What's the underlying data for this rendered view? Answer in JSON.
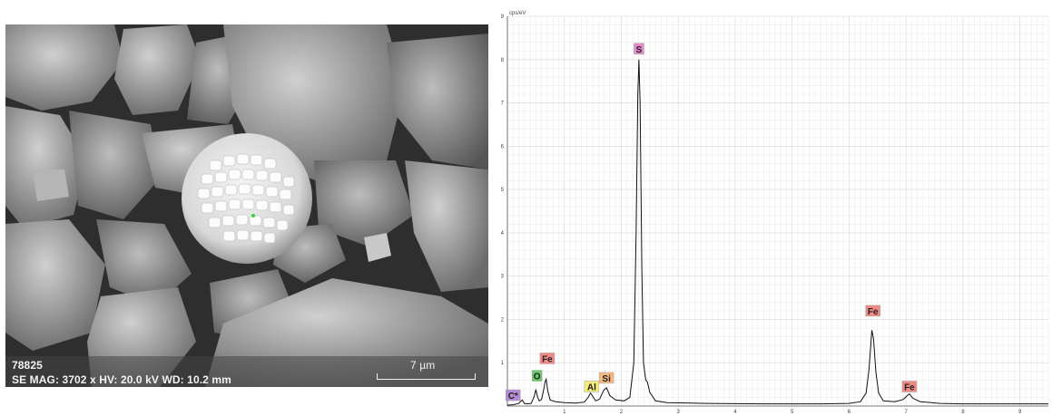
{
  "micrograph": {
    "sample_id": "78825",
    "parameters": "SE  MAG: 3702 x  HV: 20.0 kV  WD: 10.2 mm",
    "scale_bar_label": "7 µm"
  },
  "chart_data": {
    "type": "line",
    "title": "",
    "xlabel": "",
    "ylabel": "cps/eV",
    "xlim": [
      0,
      9.5
    ],
    "ylim": [
      0,
      9
    ],
    "xticks": [
      "1",
      "2",
      "3",
      "4",
      "5",
      "6",
      "7",
      "8",
      "9"
    ],
    "yticks": [
      "1",
      "2",
      "3",
      "4",
      "5",
      "6",
      "7",
      "8",
      "9"
    ],
    "grid": true,
    "series": [
      {
        "points": [
          [
            0.0,
            0.02
          ],
          [
            0.1,
            0.03
          ],
          [
            0.2,
            0.06
          ],
          [
            0.26,
            0.14
          ],
          [
            0.3,
            0.06
          ],
          [
            0.36,
            0.05
          ],
          [
            0.42,
            0.06
          ],
          [
            0.47,
            0.22
          ],
          [
            0.5,
            0.38
          ],
          [
            0.53,
            0.2
          ],
          [
            0.56,
            0.12
          ],
          [
            0.6,
            0.15
          ],
          [
            0.64,
            0.4
          ],
          [
            0.66,
            0.55
          ],
          [
            0.68,
            0.62
          ],
          [
            0.71,
            0.35
          ],
          [
            0.75,
            0.14
          ],
          [
            0.85,
            0.1
          ],
          [
            1.0,
            0.08
          ],
          [
            1.2,
            0.07
          ],
          [
            1.35,
            0.09
          ],
          [
            1.42,
            0.2
          ],
          [
            1.46,
            0.3
          ],
          [
            1.5,
            0.22
          ],
          [
            1.55,
            0.12
          ],
          [
            1.62,
            0.16
          ],
          [
            1.69,
            0.36
          ],
          [
            1.74,
            0.42
          ],
          [
            1.8,
            0.24
          ],
          [
            1.9,
            0.14
          ],
          [
            2.05,
            0.12
          ],
          [
            2.15,
            0.2
          ],
          [
            2.22,
            1.0
          ],
          [
            2.26,
            4.0
          ],
          [
            2.29,
            7.2
          ],
          [
            2.31,
            8.0
          ],
          [
            2.33,
            7.0
          ],
          [
            2.36,
            3.2
          ],
          [
            2.39,
            1.0
          ],
          [
            2.43,
            0.6
          ],
          [
            2.46,
            0.55
          ],
          [
            2.5,
            0.32
          ],
          [
            2.6,
            0.12
          ],
          [
            2.8,
            0.08
          ],
          [
            3.5,
            0.06
          ],
          [
            4.5,
            0.05
          ],
          [
            5.5,
            0.05
          ],
          [
            6.0,
            0.06
          ],
          [
            6.2,
            0.1
          ],
          [
            6.3,
            0.3
          ],
          [
            6.35,
            0.85
          ],
          [
            6.4,
            1.75
          ],
          [
            6.43,
            1.55
          ],
          [
            6.47,
            0.8
          ],
          [
            6.52,
            0.3
          ],
          [
            6.6,
            0.12
          ],
          [
            6.8,
            0.1
          ],
          [
            6.95,
            0.15
          ],
          [
            7.03,
            0.25
          ],
          [
            7.06,
            0.28
          ],
          [
            7.12,
            0.18
          ],
          [
            7.25,
            0.1
          ],
          [
            7.6,
            0.06
          ],
          [
            8.0,
            0.05
          ],
          [
            8.6,
            0.05
          ],
          [
            9.5,
            0.05
          ]
        ]
      }
    ],
    "annotations": [
      {
        "text": "C*",
        "x": 0.1,
        "y": 0.25,
        "color": "#b58bd6"
      },
      {
        "text": "O",
        "x": 0.52,
        "y": 0.7,
        "color": "#6cc86c"
      },
      {
        "text": "Fe",
        "x": 0.7,
        "y": 1.1,
        "color": "#f08a84"
      },
      {
        "text": "Al",
        "x": 1.48,
        "y": 0.45,
        "color": "#f2ea7a"
      },
      {
        "text": "Si",
        "x": 1.74,
        "y": 0.65,
        "color": "#f4b882"
      },
      {
        "text": "S",
        "x": 2.31,
        "y": 8.25,
        "color": "#e58ac9"
      },
      {
        "text": "Fe",
        "x": 6.42,
        "y": 2.2,
        "color": "#f08a84"
      },
      {
        "text": "Fe",
        "x": 7.06,
        "y": 0.45,
        "color": "#f08a84"
      }
    ]
  }
}
